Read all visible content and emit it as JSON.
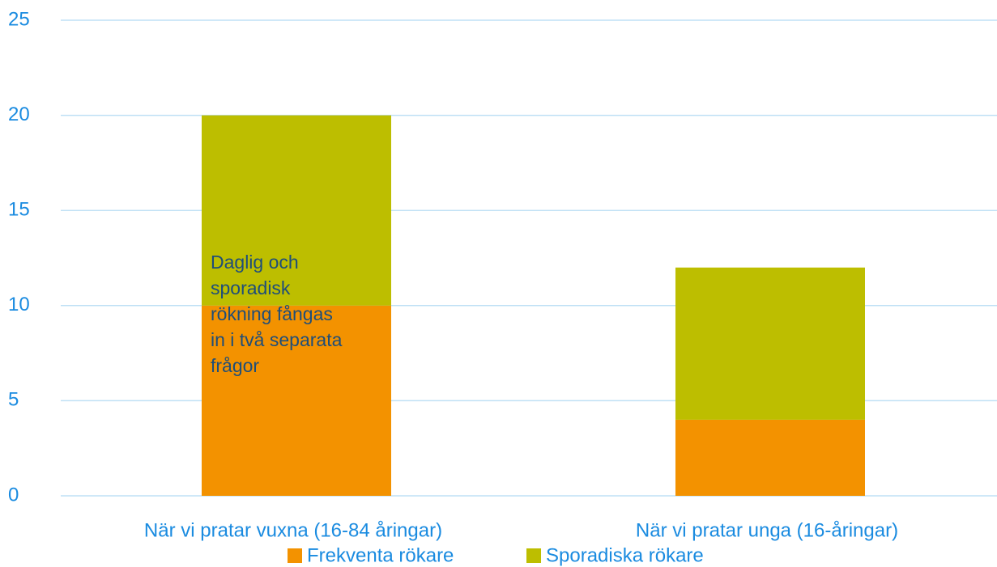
{
  "chart_data": {
    "type": "stacked_bar",
    "categories": [
      "När vi pratar vuxna (16-84 åringar)",
      "När vi pratar unga (16-åringar)"
    ],
    "series": [
      {
        "name": "Frekventa rökare",
        "color": "#f39200",
        "values": [
          10,
          4
        ]
      },
      {
        "name": "Sporadiska rökare",
        "color": "#bdbe00",
        "values": [
          10,
          8
        ]
      }
    ],
    "ylim": [
      0,
      25
    ],
    "yticks": [
      0,
      5,
      10,
      15,
      20,
      25
    ],
    "grid": true,
    "annotation": [
      "Daglig och",
      "sporadisk",
      "rökning fångas",
      "in i två separata",
      "frågor"
    ]
  }
}
